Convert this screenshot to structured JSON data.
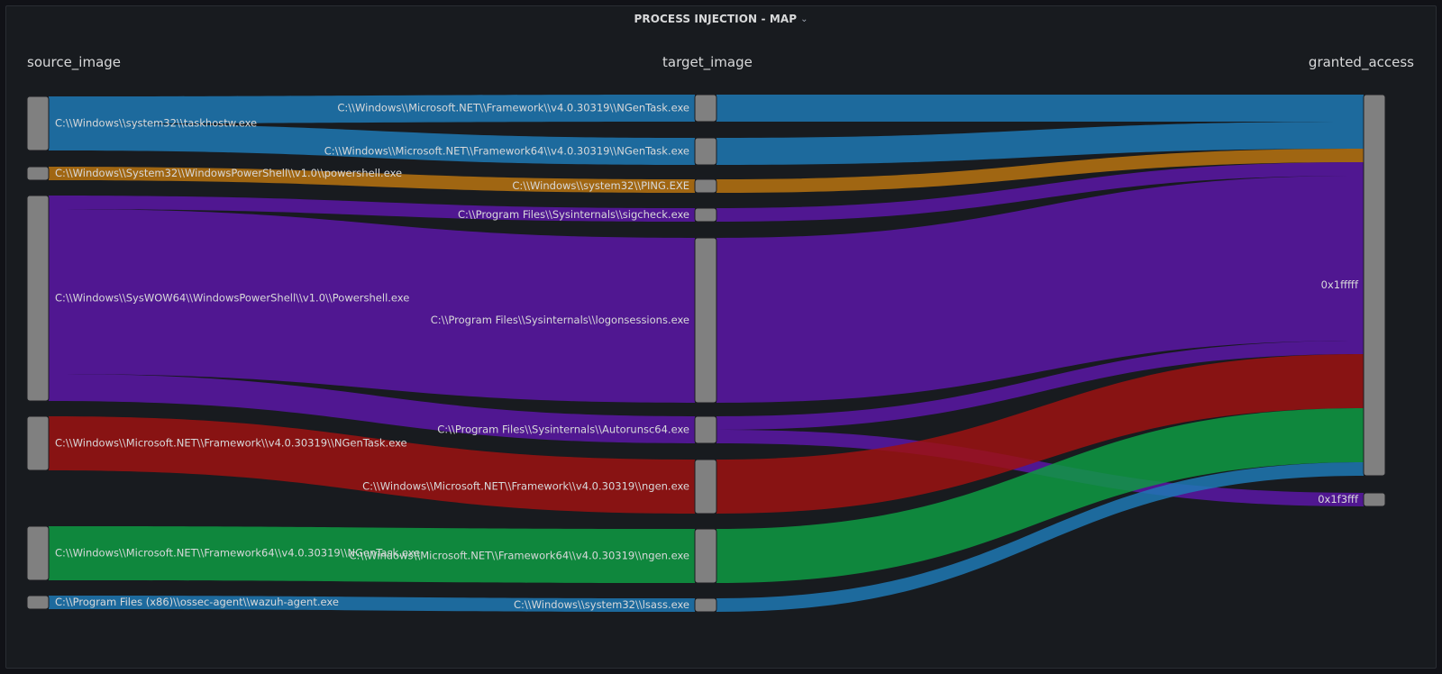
{
  "panel": {
    "title": "PROCESS INJECTION - MAP",
    "menu_icon": "chevron-down-icon"
  },
  "colors": {
    "background": "#181b1f",
    "node": "#808080",
    "blue": "#1f78b4",
    "orange": "#b87310",
    "purple": "#5a16a6",
    "red": "#9c1212",
    "green": "#0e9a43"
  },
  "chart_data": {
    "type": "sankey",
    "columns": [
      "source_image",
      "target_image",
      "granted_access"
    ],
    "nodes": {
      "source_image": [
        "C:\\\\Windows\\\\system32\\\\taskhostw.exe",
        "C:\\\\Windows\\\\System32\\\\WindowsPowerShell\\\\v1.0\\\\powershell.exe",
        "C:\\\\Windows\\\\SysWOW64\\\\WindowsPowerShell\\\\v1.0\\\\Powershell.exe",
        "C:\\\\Windows\\\\Microsoft.NET\\\\Framework\\\\v4.0.30319\\\\NGenTask.exe",
        "C:\\\\Windows\\\\Microsoft.NET\\\\Framework64\\\\v4.0.30319\\\\NGenTask.exe",
        "C:\\\\Program Files (x86)\\\\ossec-agent\\\\wazuh-agent.exe"
      ],
      "target_image": [
        "C:\\\\Windows\\\\Microsoft.NET\\\\Framework\\\\v4.0.30319\\\\NGenTask.exe",
        "C:\\\\Windows\\\\Microsoft.NET\\\\Framework64\\\\v4.0.30319\\\\NGenTask.exe",
        "C:\\\\Windows\\\\system32\\\\PING.EXE",
        "C:\\\\Program Files\\\\Sysinternals\\\\sigcheck.exe",
        "C:\\\\Program Files\\\\Sysinternals\\\\logonsessions.exe",
        "C:\\\\Program Files\\\\Sysinternals\\\\Autorunsc64.exe",
        "C:\\\\Windows\\\\Microsoft.NET\\\\Framework\\\\v4.0.30319\\\\ngen.exe",
        "C:\\\\Windows\\\\Microsoft.NET\\\\Framework64\\\\v4.0.30319\\\\ngen.exe",
        "C:\\\\Windows\\\\system32\\\\lsass.exe"
      ],
      "granted_access": [
        "0x1fffff",
        "0x1f3fff"
      ]
    },
    "links_source_to_target": [
      {
        "source": 0,
        "target": 0,
        "value": 30,
        "color": "blue"
      },
      {
        "source": 0,
        "target": 1,
        "value": 30,
        "color": "blue"
      },
      {
        "source": 1,
        "target": 2,
        "value": 15,
        "color": "orange"
      },
      {
        "source": 2,
        "target": 3,
        "value": 15,
        "color": "purple"
      },
      {
        "source": 2,
        "target": 4,
        "value": 183,
        "color": "purple"
      },
      {
        "source": 2,
        "target": 5,
        "value": 30,
        "color": "purple"
      },
      {
        "source": 3,
        "target": 6,
        "value": 60,
        "color": "red"
      },
      {
        "source": 4,
        "target": 7,
        "value": 60,
        "color": "green"
      },
      {
        "source": 5,
        "target": 8,
        "value": 15,
        "color": "blue"
      }
    ],
    "links_target_to_access": [
      {
        "source": 0,
        "target": 0,
        "value": 30,
        "color": "blue"
      },
      {
        "source": 1,
        "target": 0,
        "value": 30,
        "color": "blue"
      },
      {
        "source": 2,
        "target": 0,
        "value": 15,
        "color": "orange"
      },
      {
        "source": 3,
        "target": 0,
        "value": 15,
        "color": "purple"
      },
      {
        "source": 4,
        "target": 0,
        "value": 183,
        "color": "purple"
      },
      {
        "source": 5,
        "target": 0,
        "value": 15,
        "color": "purple"
      },
      {
        "source": 5,
        "target": 1,
        "value": 15,
        "color": "purple"
      },
      {
        "source": 6,
        "target": 0,
        "value": 60,
        "color": "red"
      },
      {
        "source": 7,
        "target": 0,
        "value": 60,
        "color": "green"
      },
      {
        "source": 8,
        "target": 0,
        "value": 15,
        "color": "blue"
      }
    ]
  }
}
